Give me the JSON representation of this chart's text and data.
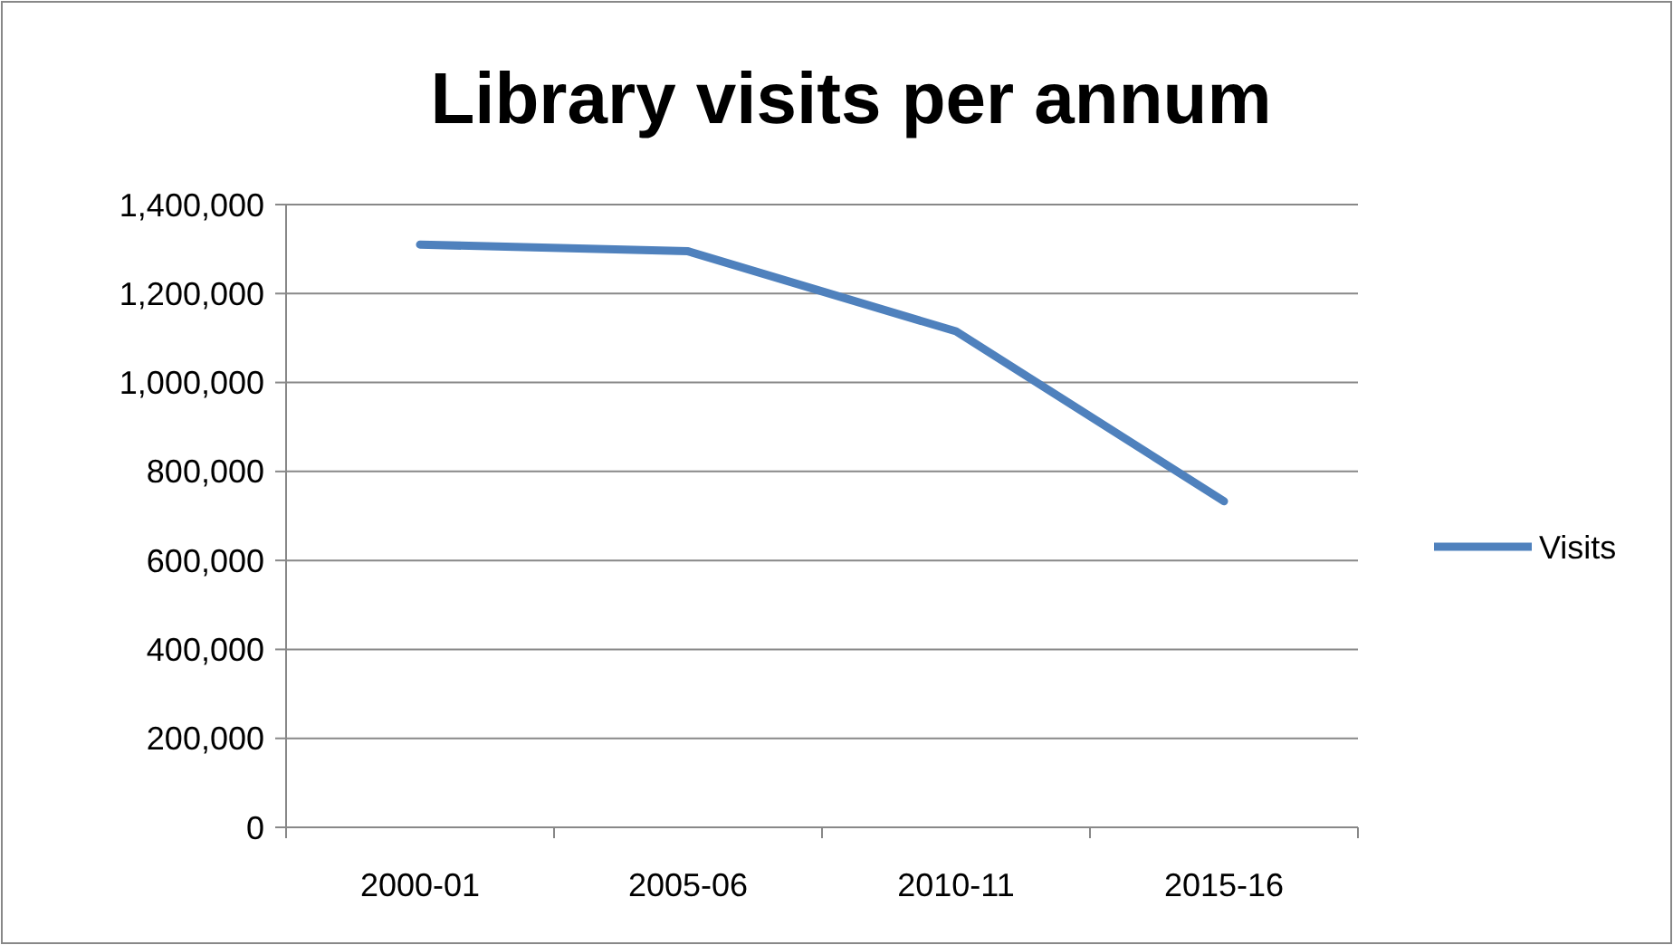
{
  "chart_data": {
    "type": "line",
    "title": "Library visits per annum",
    "categories": [
      "2000-01",
      "2005-06",
      "2010-11",
      "2015-16"
    ],
    "series": [
      {
        "name": "Visits",
        "color": "#4f81bd",
        "values": [
          1310000,
          1295000,
          1115000,
          733000
        ]
      }
    ],
    "ylim": [
      0,
      1400000
    ],
    "yticks": [
      {
        "value": 0,
        "label": "0"
      },
      {
        "value": 200000,
        "label": "200,000"
      },
      {
        "value": 400000,
        "label": "400,000"
      },
      {
        "value": 600000,
        "label": "600,000"
      },
      {
        "value": 800000,
        "label": "800,000"
      },
      {
        "value": 1000000,
        "label": "1,000,000"
      },
      {
        "value": 1200000,
        "label": "1,200,000"
      },
      {
        "value": 1400000,
        "label": "1,400,000"
      }
    ],
    "grid": "y",
    "legend": "right",
    "marker": "none",
    "line_style": "solid"
  }
}
